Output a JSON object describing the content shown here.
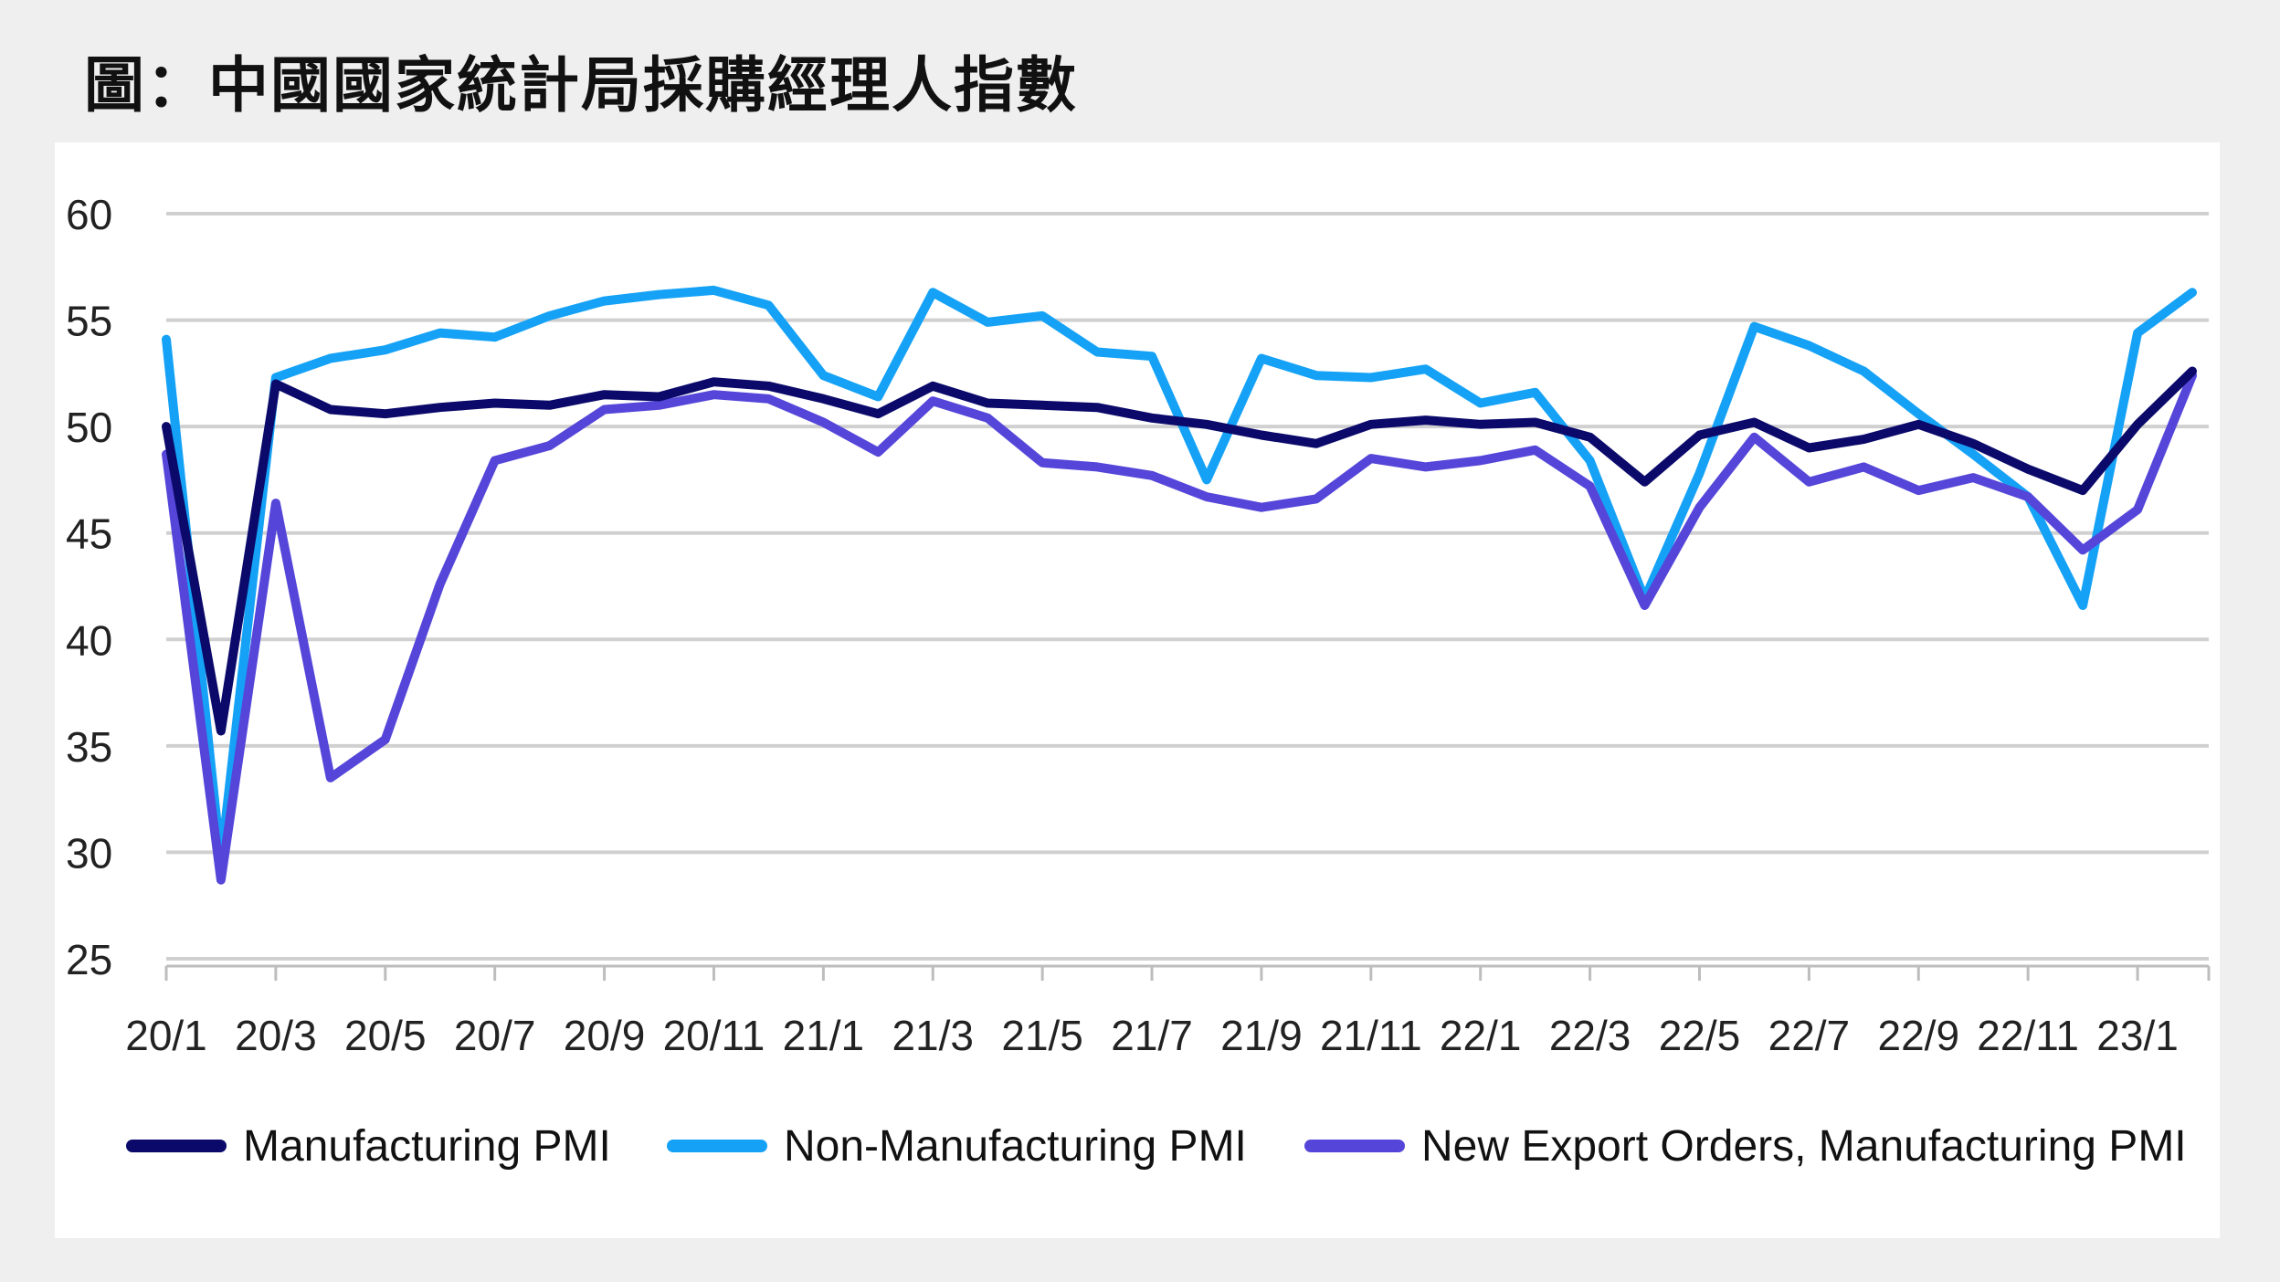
{
  "title": "圖：中國國家統計局採購經理人指數",
  "colors": {
    "manufacturing": "#0b0a6b",
    "non_manufacturing": "#15a2f6",
    "export_orders": "#5546d9",
    "grid": "#d0d0d0",
    "axis": "#bdbdbd"
  },
  "chart_data": {
    "type": "line",
    "title": "圖：中國國家統計局採購經理人指數",
    "xlabel": "",
    "ylabel": "",
    "ylim": [
      25,
      60
    ],
    "yticks": [
      "25",
      "30",
      "35",
      "40",
      "45",
      "50",
      "55",
      "60"
    ],
    "grid": true,
    "legend": "bottom",
    "x": [
      "20/1",
      "20/2",
      "20/3",
      "20/4",
      "20/5",
      "20/6",
      "20/7",
      "20/8",
      "20/9",
      "20/10",
      "20/11",
      "20/12",
      "21/1",
      "21/2",
      "21/3",
      "21/4",
      "21/5",
      "21/6",
      "21/7",
      "21/8",
      "21/9",
      "21/10",
      "21/11",
      "21/12",
      "22/1",
      "22/2",
      "22/3",
      "22/4",
      "22/5",
      "22/6",
      "22/7",
      "22/8",
      "22/9",
      "22/10",
      "22/11",
      "22/12",
      "23/1",
      "23/2"
    ],
    "x_tick_labels": [
      "20/1",
      "20/3",
      "20/5",
      "20/7",
      "20/9",
      "20/11",
      "21/1",
      "21/3",
      "21/5",
      "21/7",
      "21/9",
      "21/11",
      "22/1",
      "22/3",
      "22/5",
      "22/7",
      "22/9",
      "22/11",
      "23/1"
    ],
    "series": [
      {
        "name": "Manufacturing PMI",
        "values": [
          50.0,
          35.7,
          52.0,
          50.8,
          50.6,
          50.9,
          51.1,
          51.0,
          51.5,
          51.4,
          52.1,
          51.9,
          51.3,
          50.6,
          51.9,
          51.1,
          51.0,
          50.9,
          50.4,
          50.1,
          49.6,
          49.2,
          50.1,
          50.3,
          50.1,
          50.2,
          49.5,
          47.4,
          49.6,
          50.2,
          49.0,
          49.4,
          50.1,
          49.2,
          48.0,
          47.0,
          50.1,
          52.6
        ]
      },
      {
        "name": "Non-Manufacturing PMI",
        "values": [
          54.1,
          29.6,
          52.3,
          53.2,
          53.6,
          54.4,
          54.2,
          55.2,
          55.9,
          56.2,
          56.4,
          55.7,
          52.4,
          51.4,
          56.3,
          54.9,
          55.2,
          53.5,
          53.3,
          47.5,
          53.2,
          52.4,
          52.3,
          52.7,
          51.1,
          51.6,
          48.4,
          41.9,
          47.8,
          54.7,
          53.8,
          52.6,
          50.6,
          48.7,
          46.7,
          41.6,
          54.4,
          56.3
        ]
      },
      {
        "name": "New Export Orders, Manufacturing PMI",
        "values": [
          48.7,
          28.7,
          46.4,
          33.5,
          35.3,
          42.6,
          48.4,
          49.1,
          50.8,
          51.0,
          51.5,
          51.3,
          50.2,
          48.8,
          51.2,
          50.4,
          48.3,
          48.1,
          47.7,
          46.7,
          46.2,
          46.6,
          48.5,
          48.1,
          48.4,
          48.9,
          47.2,
          41.6,
          46.2,
          49.5,
          47.4,
          48.1,
          47.0,
          47.6,
          46.7,
          44.2,
          46.1,
          52.4
        ]
      }
    ]
  }
}
